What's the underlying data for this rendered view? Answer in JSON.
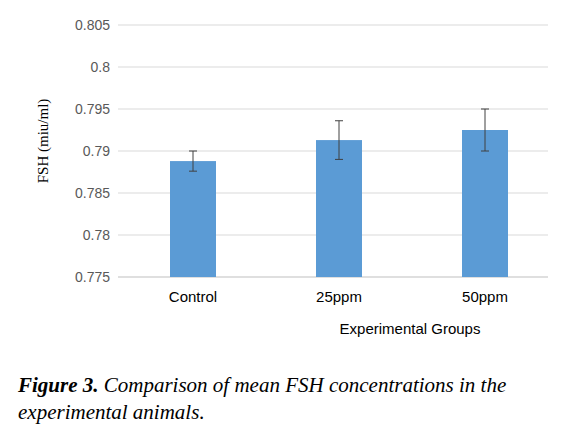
{
  "chart_data": {
    "type": "bar",
    "categories": [
      "Control",
      "25ppm",
      "50ppm"
    ],
    "values": [
      0.7888,
      0.7913,
      0.7925
    ],
    "errors": [
      0.0012,
      0.0023,
      0.0025
    ],
    "color": "#5b9bd5",
    "y_label": "FSH (miu/ml)",
    "x_label": "Experimental Groups",
    "caption_label": "Figure 3.",
    "caption": "Comparison of mean FSH concentrations in the experimental animals.",
    "ylim": [
      0.775,
      0.805
    ],
    "yticks": [
      0.775,
      0.78,
      0.785,
      0.79,
      0.795,
      0.8,
      0.805
    ],
    "grid": true
  }
}
